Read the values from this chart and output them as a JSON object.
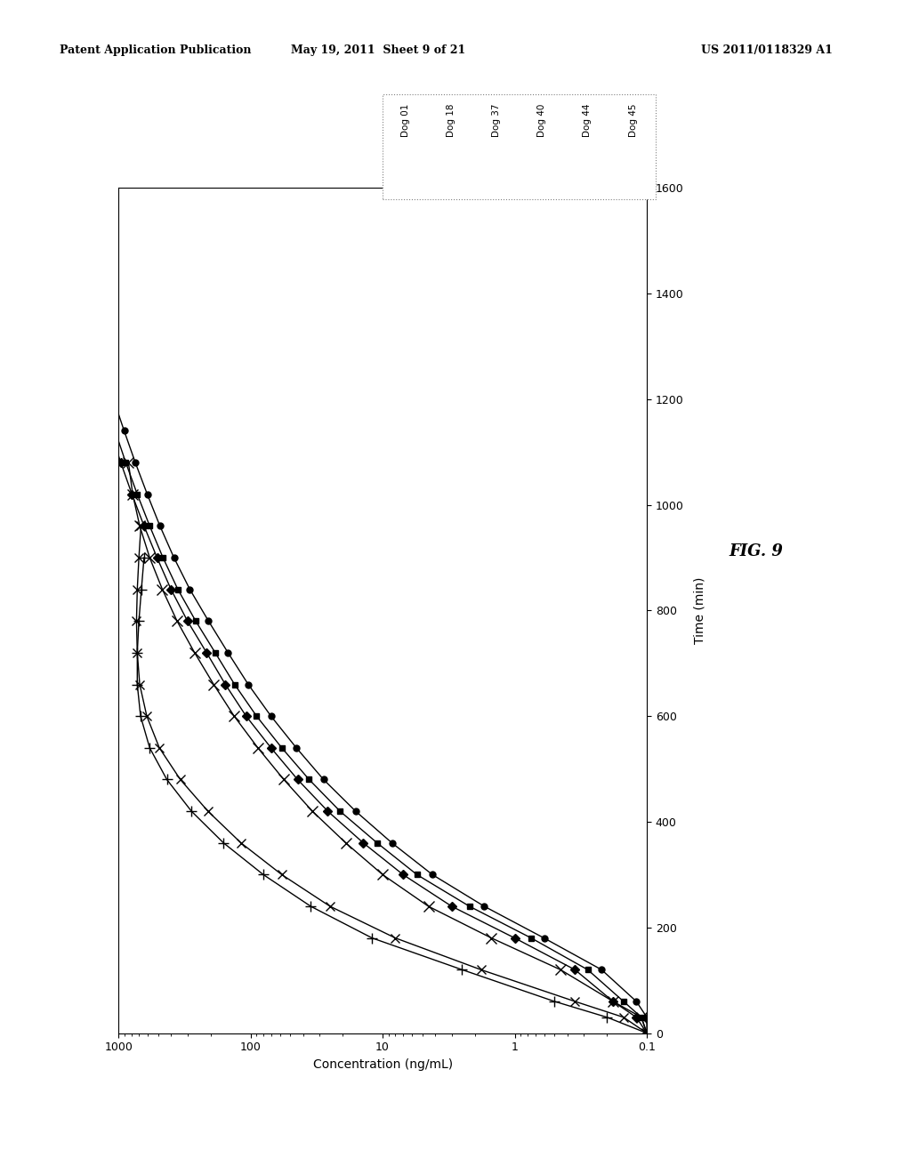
{
  "header_left": "Patent Application Publication",
  "header_mid": "May 19, 2011  Sheet 9 of 21",
  "header_right": "US 2011/0118329 A1",
  "fig_label": "FIG. 9",
  "xlabel": "Concentration (ng/mL)",
  "ylabel": "Time (min)",
  "xmin": 0.1,
  "xmax": 1000,
  "ymin": 0,
  "ymax": 1600,
  "yticks_vals": [
    0,
    200,
    400,
    600,
    800,
    1000,
    1200,
    1400,
    1600
  ],
  "yticks_labels": [
    "0",
    "200",
    "400",
    "600",
    "800",
    "1000",
    "1200",
    "1400",
    "1600"
  ],
  "xticks_vals": [
    0.1,
    1,
    10,
    100,
    1000
  ],
  "xticks_labels": [
    "0.1",
    "1",
    "10",
    "100",
    "1000"
  ],
  "series": [
    {
      "label": "Dog 01",
      "marker": "D",
      "filled": true,
      "markersize": 5,
      "time": [
        0,
        30,
        60,
        120,
        180,
        240,
        300,
        360,
        420,
        480,
        540,
        600,
        660,
        720,
        780,
        840,
        900,
        960,
        1020,
        1080,
        1140,
        1200,
        1260,
        1320,
        1380,
        1440
      ],
      "conc": [
        0.1,
        0.12,
        0.18,
        0.35,
        1.0,
        3.0,
        7.0,
        14,
        26,
        44,
        70,
        108,
        155,
        215,
        300,
        400,
        510,
        640,
        790,
        960,
        1150,
        1360,
        1580,
        1820,
        2100,
        2400
      ]
    },
    {
      "label": "Dog 18",
      "marker": "s",
      "filled": true,
      "markersize": 5,
      "time": [
        0,
        30,
        60,
        120,
        180,
        240,
        300,
        360,
        420,
        480,
        540,
        600,
        660,
        720,
        780,
        840,
        900,
        960,
        1020,
        1080,
        1140,
        1200,
        1260,
        1320,
        1380,
        1440
      ],
      "conc": [
        0.1,
        0.11,
        0.15,
        0.28,
        0.75,
        2.2,
        5.5,
        11,
        21,
        36,
        58,
        90,
        132,
        185,
        260,
        355,
        460,
        580,
        720,
        880,
        1060,
        1260,
        1480,
        1730,
        2010,
        2320
      ]
    },
    {
      "label": "Dog 37",
      "marker": "+",
      "filled": false,
      "markersize": 8,
      "time": [
        0,
        30,
        60,
        120,
        180,
        240,
        300,
        360,
        420,
        480,
        540,
        600,
        660,
        720,
        780,
        840,
        900
      ],
      "conc": [
        0.1,
        0.2,
        0.5,
        2.5,
        12,
        35,
        80,
        160,
        280,
        430,
        580,
        680,
        720,
        720,
        700,
        670,
        640
      ]
    },
    {
      "label": "Dog 40",
      "marker": "x",
      "filled": false,
      "markersize": 7,
      "time": [
        0,
        30,
        60,
        120,
        180,
        240,
        300,
        360,
        420,
        480,
        540,
        600,
        660,
        720,
        780,
        840,
        900,
        960
      ],
      "conc": [
        0.1,
        0.15,
        0.35,
        1.8,
        8,
        25,
        58,
        118,
        210,
        340,
        490,
        610,
        690,
        720,
        730,
        720,
        700,
        675
      ]
    },
    {
      "label": "Dog 44",
      "marker": "x",
      "filled": false,
      "markersize": 8,
      "time": [
        0,
        30,
        60,
        120,
        180,
        240,
        300,
        360,
        420,
        480,
        540,
        600,
        660,
        720,
        780,
        840,
        900,
        960,
        1020,
        1080
      ],
      "conc": [
        0.1,
        0.11,
        0.18,
        0.45,
        1.5,
        4.5,
        10,
        19,
        34,
        56,
        88,
        133,
        190,
        265,
        360,
        465,
        580,
        690,
        780,
        840
      ]
    },
    {
      "label": "Dog 45",
      "marker": "o",
      "filled": true,
      "markersize": 5,
      "time": [
        0,
        30,
        60,
        120,
        180,
        240,
        300,
        360,
        420,
        480,
        540,
        600,
        660,
        720,
        780,
        840,
        900,
        960,
        1020,
        1080,
        1140,
        1200,
        1260,
        1320,
        1380,
        1440
      ],
      "conc": [
        0.1,
        0.1,
        0.12,
        0.22,
        0.6,
        1.7,
        4.2,
        8.5,
        16,
        28,
        45,
        70,
        104,
        148,
        208,
        288,
        380,
        485,
        605,
        745,
        905,
        1090,
        1300,
        1540,
        1820,
        2140
      ]
    }
  ]
}
